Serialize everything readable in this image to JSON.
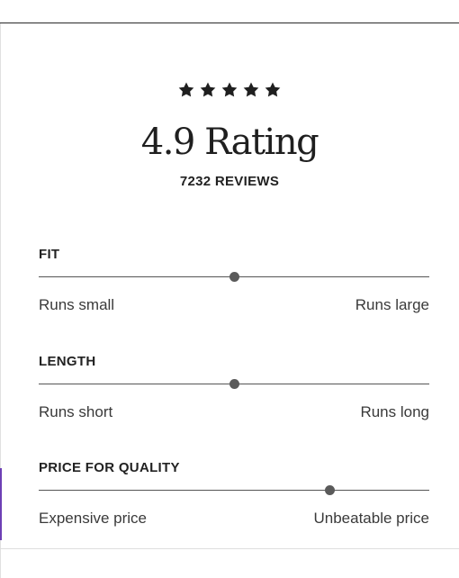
{
  "rating": {
    "stars_filled": 5,
    "stars_total": 5,
    "title": "4.9 Rating",
    "reviews": "7232 REVIEWS"
  },
  "sliders": [
    {
      "label": "FIT",
      "left": "Runs small",
      "right": "Runs large",
      "position_percent": 50
    },
    {
      "label": "LENGTH",
      "left": "Runs short",
      "right": "Runs long",
      "position_percent": 50
    },
    {
      "label": "PRICE FOR QUALITY",
      "left": "Expensive price",
      "right": "Unbeatable price",
      "position_percent": 74.5
    }
  ],
  "colors": {
    "text": "#1f1f1f",
    "track": "#555555",
    "thumb": "#5a5a5a",
    "accent": "#6d3fb5"
  },
  "icons": {
    "star": "star-filled-icon"
  }
}
